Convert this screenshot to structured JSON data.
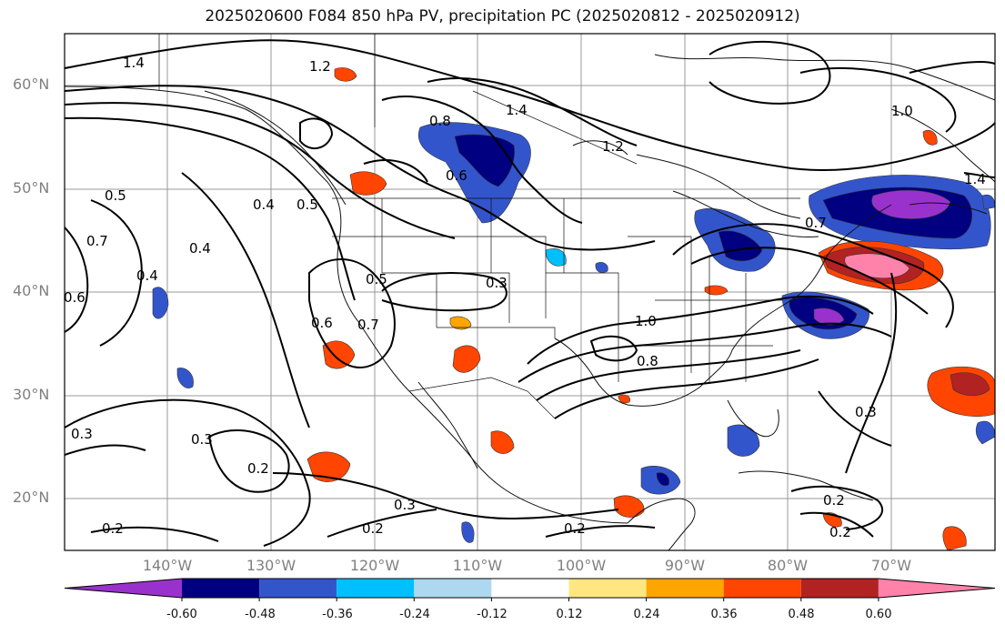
{
  "title": "2025020600 F084 850 hPa PV, precipitation PC (2025020812 - 2025020912)",
  "map": {
    "region": "North America / Eastern Pacific",
    "lat_labels": [
      "60°N",
      "50°N",
      "40°N",
      "30°N",
      "20°N"
    ],
    "lon_labels": [
      "140°W",
      "130°W",
      "120°W",
      "110°W",
      "100°W",
      "90°W",
      "80°W",
      "70°W"
    ],
    "contour_labels": [
      "1.4",
      "1.2",
      "0.8",
      "0.6",
      "1.4",
      "1.2",
      "1.0",
      "1.4",
      "0.5",
      "0.4",
      "0.5",
      "0.7",
      "0.4",
      "0.6",
      "0.4",
      "0.6",
      "0.5",
      "0.7",
      "0.3",
      "1.0",
      "0.8",
      "0.7",
      "0.3",
      "0.3",
      "0.2",
      "0.3",
      "0.2",
      "0.2",
      "0.2",
      "0.3",
      "0.2",
      "0.2"
    ]
  },
  "colorbar": {
    "labels": [
      "-0.60",
      "-0.48",
      "-0.36",
      "-0.24",
      "-0.12",
      "0.12",
      "0.24",
      "0.36",
      "0.48",
      "0.60"
    ],
    "colors": [
      "#9932cc",
      "#000080",
      "#3355cc",
      "#00bfff",
      "#add8f0",
      "#ffffff",
      "#ffe680",
      "#ffa500",
      "#ff4500",
      "#b22222",
      "#ff82ab"
    ]
  }
}
